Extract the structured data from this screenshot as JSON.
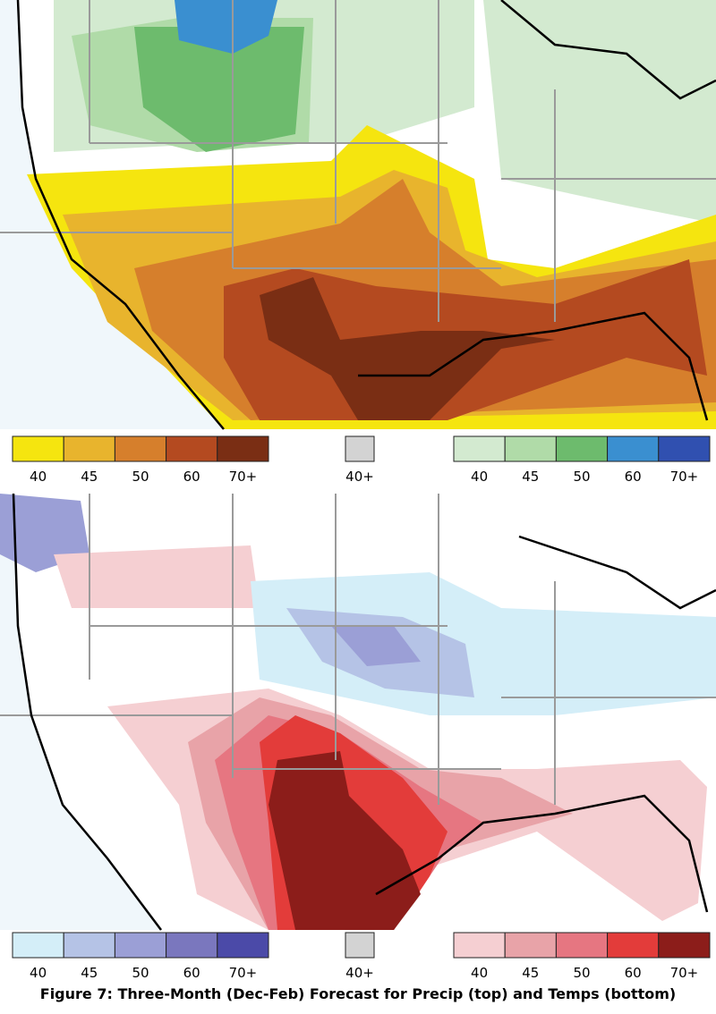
{
  "maps": [
    {
      "name": "precip",
      "legends": [
        {
          "colors": [
            "#f5e50f",
            "#e8b42d",
            "#d67f2c",
            "#b44a20",
            "#7a2e14"
          ],
          "labels": [
            "40",
            "45",
            "50",
            "60",
            "70+"
          ]
        },
        {
          "colors": [
            "#d3d3d3"
          ],
          "labels": [
            "40+"
          ]
        },
        {
          "colors": [
            "#d3ead0",
            "#b0dba8",
            "#6dbb6d",
            "#3a8fd0",
            "#3050b0"
          ],
          "labels": [
            "40",
            "45",
            "50",
            "60",
            "70+"
          ]
        }
      ]
    },
    {
      "name": "temps",
      "legends": [
        {
          "colors": [
            "#d4eef8",
            "#b5c3e6",
            "#9b9fd6",
            "#7a77be",
            "#4b4aa8"
          ],
          "labels": [
            "40",
            "45",
            "50",
            "60",
            "70+"
          ]
        },
        {
          "colors": [
            "#d3d3d3"
          ],
          "labels": [
            "40+"
          ]
        },
        {
          "colors": [
            "#f5cfd2",
            "#e8a3a8",
            "#e67681",
            "#e33c3a",
            "#8c1d1a"
          ],
          "labels": [
            "40",
            "45",
            "50",
            "60",
            "70+"
          ]
        }
      ]
    }
  ],
  "caption": "Figure 7: Three-Month (Dec-Feb) Forecast for Precip (top) and Temps (bottom)"
}
